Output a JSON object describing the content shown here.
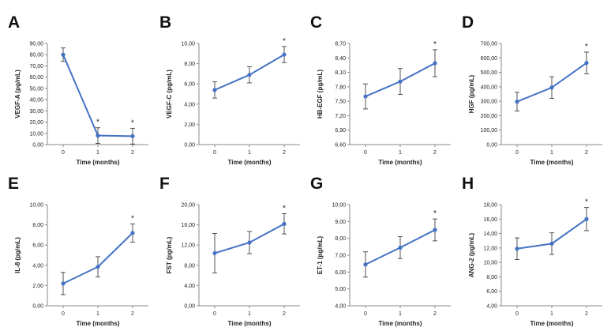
{
  "chart_data": [
    {
      "panel_letter": "A",
      "type": "line",
      "xlabel": "Time (months)",
      "ylabel": "VEGF-A (pg/mL)",
      "x": [
        0,
        1,
        2
      ],
      "y": [
        80,
        8,
        7.5
      ],
      "err": [
        6,
        7,
        7
      ],
      "ylim": [
        0,
        90
      ],
      "yticks": [
        "0,00",
        "10,00",
        "20,00",
        "30,00",
        "40,00",
        "50,00",
        "60,00",
        "70,00",
        "80,00",
        "90,00"
      ],
      "xticks": [
        "0",
        "1",
        "2"
      ],
      "significance": [
        false,
        true,
        true
      ]
    },
    {
      "panel_letter": "B",
      "type": "line",
      "xlabel": "Time (months)",
      "ylabel": "VEGF-C (pg/mL)",
      "x": [
        0,
        1,
        2
      ],
      "y": [
        5.4,
        6.9,
        8.9
      ],
      "err": [
        0.8,
        0.8,
        0.8
      ],
      "ylim": [
        0,
        10
      ],
      "yticks": [
        "0,00",
        "2,00",
        "4,00",
        "6,00",
        "8,00",
        "10,00"
      ],
      "xticks": [
        "0",
        "1",
        "2"
      ],
      "significance": [
        false,
        false,
        true
      ]
    },
    {
      "panel_letter": "C",
      "type": "line",
      "xlabel": "Time (months)",
      "ylabel": "HB-EGF (pg/mL)",
      "x": [
        0,
        1,
        2
      ],
      "y": [
        7.6,
        7.91,
        8.29
      ],
      "err": [
        0.26,
        0.27,
        0.28
      ],
      "ylim": [
        6.6,
        8.7
      ],
      "yticks": [
        "6,60",
        "6,90",
        "7,20",
        "7,50",
        "7,80",
        "8,10",
        "8,40",
        "8,70"
      ],
      "xticks": [
        "0",
        "1",
        "2"
      ],
      "significance": [
        false,
        false,
        true
      ]
    },
    {
      "panel_letter": "D",
      "type": "line",
      "xlabel": "Time (months)",
      "ylabel": "HGF (pg/mL)",
      "x": [
        0,
        1,
        2
      ],
      "y": [
        297,
        395,
        565
      ],
      "err": [
        65,
        75,
        75
      ],
      "ylim": [
        0,
        700
      ],
      "yticks": [
        "0,00",
        "100,00",
        "200,00",
        "300,00",
        "400,00",
        "500,00",
        "600,00",
        "700,00"
      ],
      "xticks": [
        "0",
        "1",
        "2"
      ],
      "significance": [
        false,
        false,
        true
      ]
    },
    {
      "panel_letter": "E",
      "type": "line",
      "xlabel": "Time (months)",
      "ylabel": "IL-8 (pg/mL)",
      "x": [
        0,
        1,
        2
      ],
      "y": [
        2.2,
        3.85,
        7.2
      ],
      "err": [
        1.1,
        1.0,
        0.9
      ],
      "ylim": [
        0,
        10
      ],
      "yticks": [
        "0,00",
        "2,00",
        "4,00",
        "6,00",
        "8,00",
        "10,00"
      ],
      "xticks": [
        "0",
        "1",
        "2"
      ],
      "significance": [
        false,
        false,
        true
      ]
    },
    {
      "panel_letter": "F",
      "type": "line",
      "xlabel": "Time (months)",
      "ylabel": "FST (pg/mL)",
      "x": [
        0,
        1,
        2
      ],
      "y": [
        10.4,
        12.5,
        16.2
      ],
      "err": [
        3.9,
        2.2,
        2.0
      ],
      "ylim": [
        0,
        20
      ],
      "yticks": [
        "0,00",
        "4,00",
        "8,00",
        "12,00",
        "16,00",
        "20,00"
      ],
      "xticks": [
        "0",
        "1",
        "2"
      ],
      "significance": [
        false,
        false,
        true
      ]
    },
    {
      "panel_letter": "G",
      "type": "line",
      "xlabel": "Time (months)",
      "ylabel": "ET-1 (pg/mL)",
      "x": [
        0,
        1,
        2
      ],
      "y": [
        6.45,
        7.45,
        8.5
      ],
      "err": [
        0.75,
        0.65,
        0.65
      ],
      "ylim": [
        4,
        10
      ],
      "yticks": [
        "4,00",
        "5,00",
        "6,00",
        "7,00",
        "8,00",
        "9,00",
        "10,00"
      ],
      "xticks": [
        "0",
        "1",
        "2"
      ],
      "significance": [
        false,
        false,
        true
      ]
    },
    {
      "panel_letter": "H",
      "type": "line",
      "xlabel": "Time (months)",
      "ylabel": "ANG-2 (pg/mL)",
      "x": [
        0,
        1,
        2
      ],
      "y": [
        11.9,
        12.6,
        16.0
      ],
      "err": [
        1.5,
        1.5,
        1.6
      ],
      "ylim": [
        4,
        18
      ],
      "yticks": [
        "4,00",
        "6,00",
        "8,00",
        "10,00",
        "12,00",
        "14,00",
        "16,00",
        "18,00"
      ],
      "xticks": [
        "0",
        "1",
        "2"
      ],
      "significance": [
        false,
        false,
        true
      ]
    }
  ],
  "style": {
    "line_color": "#4472C4",
    "marker_color": "#4472C4",
    "error_color": "#404040",
    "axis_color": "#8a8a8a",
    "text_color": "#222222"
  }
}
